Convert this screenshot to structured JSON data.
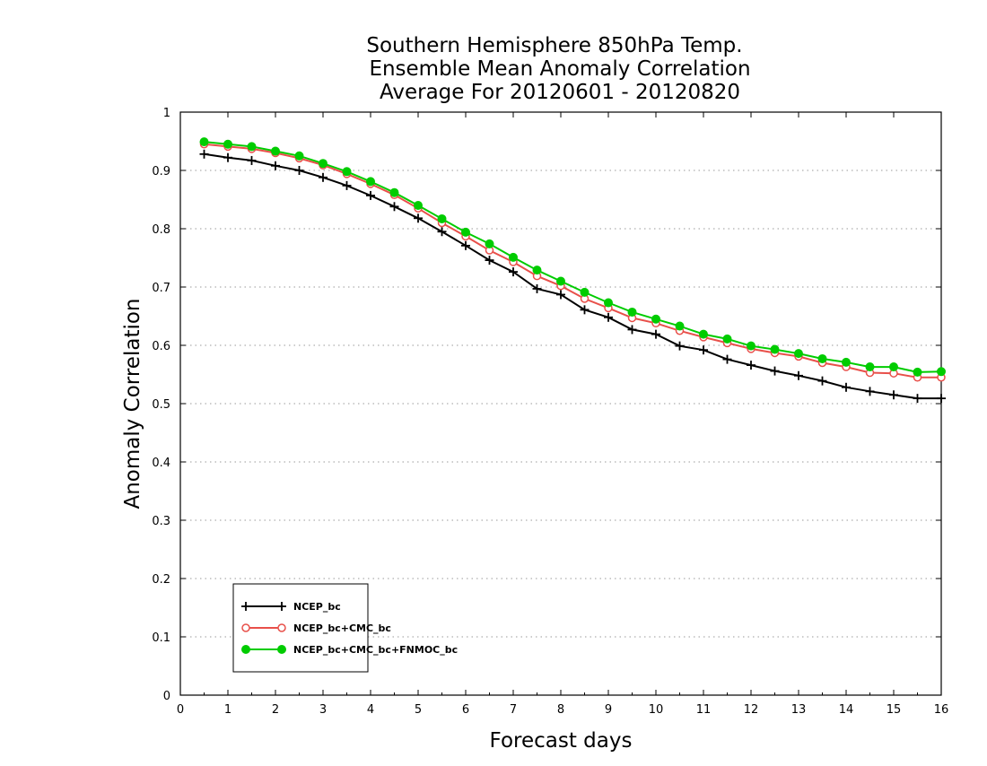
{
  "chart_data": {
    "type": "line",
    "title_lines": [
      "Southern Hemisphere 850hPa Temp.",
      "Ensemble Mean Anomaly Correlation",
      "Average For 20120601 - 20120820"
    ],
    "xlabel": "Forecast days",
    "ylabel": "Anomaly Correlation",
    "xlim": [
      0,
      16
    ],
    "ylim": [
      0,
      1
    ],
    "x_ticks": [
      "0",
      "1",
      "2",
      "3",
      "4",
      "5",
      "6",
      "7",
      "8",
      "9",
      "10",
      "11",
      "12",
      "13",
      "14",
      "15",
      "16"
    ],
    "y_ticks": [
      "0",
      "0.1",
      "0.2",
      "0.3",
      "0.4",
      "0.5",
      "0.6",
      "0.7",
      "0.8",
      "0.9",
      "1"
    ],
    "grid": true,
    "legend_position": "lower-left",
    "x": [
      0.5,
      1,
      1.5,
      2,
      2.5,
      3,
      3.5,
      4,
      4.5,
      5,
      5.5,
      6,
      6.5,
      7,
      7.5,
      8,
      8.5,
      9,
      9.5,
      10,
      10.5,
      11,
      11.5,
      12,
      12.5,
      13,
      13.5,
      14,
      14.5,
      15,
      15.5,
      16
    ],
    "series": [
      {
        "name": "NCEP_bc",
        "color": "#000000",
        "marker": "plus",
        "values": [
          0.928,
          0.922,
          0.917,
          0.908,
          0.9,
          0.888,
          0.874,
          0.857,
          0.838,
          0.818,
          0.795,
          0.771,
          0.746,
          0.726,
          0.697,
          0.687,
          0.661,
          0.648,
          0.627,
          0.619,
          0.599,
          0.592,
          0.576,
          0.566,
          0.556,
          0.548,
          0.539,
          0.528,
          0.521,
          0.515,
          0.509,
          0.509
        ]
      },
      {
        "name": "NCEP_bc+CMC_bc",
        "color": "#e8504a",
        "marker": "open-circle",
        "values": [
          0.945,
          0.941,
          0.937,
          0.93,
          0.921,
          0.909,
          0.894,
          0.877,
          0.858,
          0.835,
          0.81,
          0.787,
          0.763,
          0.743,
          0.719,
          0.702,
          0.68,
          0.664,
          0.647,
          0.638,
          0.625,
          0.614,
          0.604,
          0.594,
          0.587,
          0.581,
          0.57,
          0.563,
          0.553,
          0.552,
          0.545,
          0.545
        ]
      },
      {
        "name": "NCEP_bc+CMC_bc+FNMOC_bc",
        "color": "#00cc00",
        "marker": "filled-circle",
        "values": [
          0.949,
          0.945,
          0.941,
          0.933,
          0.925,
          0.912,
          0.898,
          0.881,
          0.862,
          0.84,
          0.817,
          0.794,
          0.774,
          0.751,
          0.729,
          0.71,
          0.691,
          0.673,
          0.657,
          0.645,
          0.633,
          0.619,
          0.611,
          0.599,
          0.593,
          0.586,
          0.577,
          0.571,
          0.563,
          0.563,
          0.554,
          0.555
        ]
      }
    ]
  }
}
